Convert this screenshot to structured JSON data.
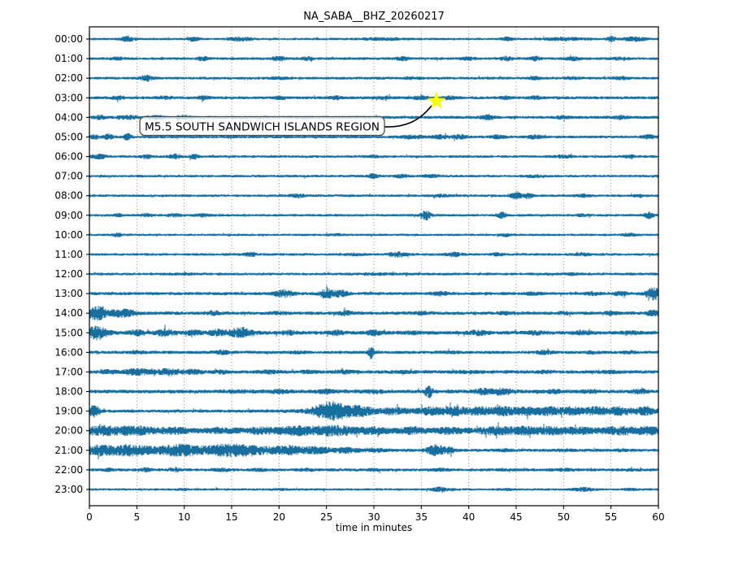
{
  "title": "NA_SABA__BHZ_20260217",
  "xlabel": "time in minutes",
  "annotation": {
    "text": "M5.5 SOUTH SANDWICH ISLANDS REGION"
  },
  "colors": {
    "trace": "#186e9e",
    "grid": "#7f7f7f",
    "spine": "#000000",
    "star_fill": "#ffff00",
    "annotation_border": "#4d4d4d",
    "annotation_fill": "rgba(255,255,255,0.75)",
    "arrow": "#000000"
  },
  "chart_data": {
    "type": "line",
    "subtype": "helicorder_dayplot",
    "title": "NA_SABA__BHZ_20260217",
    "xlabel": "time in minutes",
    "x_range": [
      0,
      60
    ],
    "x_ticks": [
      0,
      5,
      10,
      15,
      20,
      25,
      30,
      35,
      40,
      45,
      50,
      55,
      60
    ],
    "grid": "dotted-vertical",
    "legend": "none",
    "event": {
      "label": "M5.5 SOUTH SANDWICH ISLANDS REGION",
      "row_label": "03:00",
      "minute": 36.6,
      "marker": "star"
    },
    "amplitude_units": "relative half-height (px at 24px row pitch); bursts = [minute, sigma_min, peak_amp]",
    "rows": [
      {
        "label": "00:00",
        "base": 1.4,
        "bursts": [
          [
            4,
            0.5,
            2.5
          ],
          [
            11,
            0.4,
            2
          ],
          [
            16,
            0.8,
            2
          ],
          [
            31,
            1.5,
            1
          ],
          [
            44,
            0.4,
            1.5
          ],
          [
            50,
            1.5,
            1.2
          ],
          [
            55,
            0.3,
            3
          ],
          [
            57.5,
            0.8,
            2
          ]
        ]
      },
      {
        "label": "01:00",
        "base": 1.6,
        "bursts": [
          [
            3,
            0.5,
            1
          ],
          [
            12,
            0.4,
            1.8
          ],
          [
            20,
            0.5,
            2
          ],
          [
            23,
            0.4,
            1.5
          ],
          [
            33,
            0.5,
            1.5
          ],
          [
            40,
            0.5,
            1.2
          ],
          [
            44,
            0.4,
            1.8
          ],
          [
            47,
            0.4,
            1.8
          ],
          [
            51,
            0.5,
            1.5
          ],
          [
            56,
            0.5,
            1.2
          ]
        ]
      },
      {
        "label": "02:00",
        "base": 1.6,
        "bursts": [
          [
            6,
            0.4,
            2.8
          ],
          [
            20,
            0.6,
            0.8
          ],
          [
            34,
            0.6,
            0.8
          ],
          [
            47,
            0.5,
            1.2
          ],
          [
            51,
            0.5,
            1
          ],
          [
            56,
            0.5,
            1.3
          ]
        ]
      },
      {
        "label": "03:00",
        "base": 1.7,
        "bursts": [
          [
            3,
            0.5,
            1.5
          ],
          [
            8,
            0.5,
            1.2
          ],
          [
            12,
            0.5,
            1.5
          ],
          [
            20,
            0.5,
            1.2
          ],
          [
            26,
            0.5,
            1.2
          ],
          [
            31,
            0.6,
            1.2
          ],
          [
            35,
            0.6,
            1.3
          ],
          [
            38,
            0.5,
            1.3
          ],
          [
            44,
            0.5,
            1.2
          ],
          [
            47,
            0.5,
            1.2
          ]
        ]
      },
      {
        "label": "04:00",
        "base": 1.7,
        "bursts": [
          [
            1,
            0.5,
            1.5
          ],
          [
            4,
            0.6,
            1.6
          ],
          [
            7,
            0.6,
            1.5
          ],
          [
            10,
            0.5,
            1.3
          ],
          [
            42,
            0.5,
            2
          ],
          [
            50,
            0.5,
            1
          ],
          [
            56,
            0.5,
            1.5
          ]
        ]
      },
      {
        "label": "05:00",
        "base": 1.6,
        "bursts": [
          [
            0.5,
            0.3,
            2
          ],
          [
            2,
            0.3,
            2.5
          ],
          [
            4,
            0.25,
            3.5
          ],
          [
            34,
            0.8,
            1.5
          ],
          [
            37,
            0.6,
            1.6
          ],
          [
            39,
            0.5,
            2
          ],
          [
            43,
            0.5,
            1.5
          ],
          [
            47,
            0.6,
            1.6
          ],
          [
            59,
            0.5,
            1.8
          ]
        ]
      },
      {
        "label": "06:00",
        "base": 1.5,
        "bursts": [
          [
            1,
            0.5,
            2.2
          ],
          [
            6,
            0.4,
            1.6
          ],
          [
            9,
            0.4,
            2.4
          ],
          [
            11,
            0.3,
            2
          ],
          [
            30,
            0.6,
            1
          ],
          [
            50,
            0.6,
            1.2
          ],
          [
            57,
            0.5,
            1.3
          ]
        ]
      },
      {
        "label": "07:00",
        "base": 1.5,
        "bursts": [
          [
            30,
            0.5,
            1.8
          ],
          [
            33,
            0.5,
            1.4
          ],
          [
            36,
            0.5,
            1.3
          ],
          [
            47,
            0.5,
            1
          ]
        ]
      },
      {
        "label": "08:00",
        "base": 1.5,
        "bursts": [
          [
            22,
            0.5,
            1.8
          ],
          [
            37,
            0.8,
            1
          ],
          [
            45,
            0.35,
            4
          ],
          [
            46.3,
            0.3,
            3
          ],
          [
            52,
            0.5,
            1.3
          ],
          [
            58,
            0.4,
            1.2
          ]
        ]
      },
      {
        "label": "09:00",
        "base": 1.5,
        "bursts": [
          [
            3,
            0.3,
            1.5
          ],
          [
            6,
            0.4,
            1.4
          ],
          [
            9,
            0.5,
            1.2
          ],
          [
            12,
            0.5,
            1.3
          ],
          [
            35.5,
            0.35,
            4.5
          ],
          [
            43.5,
            0.3,
            3
          ],
          [
            52,
            0.5,
            1
          ],
          [
            59,
            0.35,
            3
          ]
        ]
      },
      {
        "label": "10:00",
        "base": 1.4,
        "bursts": [
          [
            3,
            0.3,
            1.6
          ],
          [
            26,
            0.6,
            0.8
          ],
          [
            44,
            0.5,
            1
          ],
          [
            57,
            0.5,
            1.4
          ]
        ]
      },
      {
        "label": "11:00",
        "base": 1.5,
        "bursts": [
          [
            17,
            0.5,
            1.6
          ],
          [
            28,
            0.6,
            1
          ],
          [
            32.5,
            0.7,
            2.2
          ],
          [
            38.5,
            0.6,
            1.8
          ],
          [
            43,
            0.5,
            1.3
          ],
          [
            52,
            0.6,
            1.2
          ]
        ]
      },
      {
        "label": "12:00",
        "base": 1.6,
        "bursts": [
          [
            10,
            1,
            0.5
          ],
          [
            30,
            1.5,
            0.6
          ],
          [
            51,
            0.6,
            0.8
          ]
        ]
      },
      {
        "label": "13:00",
        "base": 1.8,
        "bursts": [
          [
            20.5,
            0.7,
            3.5
          ],
          [
            25,
            0.5,
            4.5
          ],
          [
            26.5,
            0.5,
            3
          ],
          [
            37,
            0.6,
            1.5
          ],
          [
            47,
            0.6,
            1
          ],
          [
            53,
            0.5,
            1.2
          ],
          [
            56,
            0.5,
            1.5
          ],
          [
            59.5,
            0.6,
            6
          ]
        ]
      },
      {
        "label": "14:00",
        "base": 1.9,
        "bursts": [
          [
            0.8,
            0.7,
            7
          ],
          [
            3.5,
            1,
            3.5
          ],
          [
            13,
            0.6,
            1.5
          ],
          [
            20,
            0.6,
            1
          ],
          [
            27,
            0.5,
            2
          ],
          [
            35,
            0.8,
            1
          ],
          [
            44,
            0.6,
            1
          ],
          [
            50,
            0.5,
            1
          ],
          [
            55,
            0.5,
            1.5
          ],
          [
            59.5,
            0.5,
            2.5
          ]
        ]
      },
      {
        "label": "15:00",
        "base": 2.1,
        "bursts": [
          [
            0.8,
            0.8,
            6.5
          ],
          [
            5,
            0.6,
            2.5
          ],
          [
            8,
            0.7,
            3
          ],
          [
            11,
            0.6,
            2
          ],
          [
            13.5,
            0.6,
            2.5
          ],
          [
            16,
            0.9,
            4.5
          ],
          [
            21,
            0.6,
            1.5
          ],
          [
            26,
            0.6,
            1.6
          ],
          [
            30,
            0.6,
            1.8
          ],
          [
            34,
            0.6,
            1.2
          ],
          [
            41,
            0.7,
            1.8
          ],
          [
            47,
            0.6,
            1.2
          ],
          [
            52,
            0.6,
            1.5
          ],
          [
            57,
            0.6,
            1.2
          ]
        ]
      },
      {
        "label": "16:00",
        "base": 1.8,
        "bursts": [
          [
            5,
            0.6,
            0.8
          ],
          [
            14,
            0.6,
            1.4
          ],
          [
            22,
            0.6,
            0.8
          ],
          [
            29.7,
            0.2,
            7
          ],
          [
            38,
            0.8,
            0.8
          ],
          [
            48,
            0.6,
            1.6
          ],
          [
            53,
            0.5,
            1
          ],
          [
            57,
            0.5,
            1.2
          ]
        ]
      },
      {
        "label": "17:00",
        "base": 2.0,
        "bursts": [
          [
            2,
            0.5,
            1.4
          ],
          [
            5,
            1,
            2.6
          ],
          [
            8.5,
            0.9,
            3
          ],
          [
            11,
            0.6,
            1.8
          ],
          [
            14,
            0.5,
            1.2
          ],
          [
            19,
            0.7,
            1.2
          ],
          [
            23,
            0.6,
            1
          ],
          [
            27,
            0.6,
            1.2
          ],
          [
            33,
            0.8,
            0.8
          ],
          [
            40,
            0.8,
            0.8
          ],
          [
            48,
            0.6,
            0.8
          ],
          [
            55,
            0.6,
            0.8
          ]
        ]
      },
      {
        "label": "18:00",
        "base": 2.1,
        "bursts": [
          [
            16,
            1,
            0.8
          ],
          [
            20,
            0.8,
            1
          ],
          [
            25,
            0.8,
            1.2
          ],
          [
            30,
            0.8,
            1
          ],
          [
            35.8,
            0.25,
            6
          ],
          [
            41.5,
            0.6,
            2.5
          ],
          [
            43.5,
            0.7,
            3
          ],
          [
            49,
            0.6,
            1.3
          ],
          [
            53,
            0.6,
            1
          ],
          [
            58,
            0.5,
            1.8
          ]
        ]
      },
      {
        "label": "19:00",
        "base": 1.8,
        "bursts": [
          [
            0.5,
            0.4,
            6
          ],
          [
            25.5,
            1.3,
            9
          ],
          [
            28.5,
            1,
            4
          ],
          [
            32,
            0.8,
            2
          ],
          [
            45,
            12,
            2.2
          ],
          [
            36,
            0.8,
            2
          ],
          [
            38.5,
            0.7,
            2.5
          ],
          [
            41,
            0.7,
            2
          ],
          [
            43.5,
            0.7,
            2.6
          ],
          [
            46,
            0.7,
            2
          ],
          [
            48.5,
            0.7,
            1.8
          ],
          [
            51,
            0.7,
            2
          ],
          [
            53.5,
            0.7,
            2.3
          ],
          [
            56,
            0.7,
            2.5
          ],
          [
            58.5,
            0.7,
            2.5
          ]
        ]
      },
      {
        "label": "20:00",
        "base": 3.2,
        "bursts": [
          [
            1.5,
            1.5,
            3
          ],
          [
            5,
            1.5,
            2.5
          ],
          [
            9,
            1,
            1.5
          ],
          [
            14,
            1,
            1
          ],
          [
            18,
            1,
            1.5
          ],
          [
            22,
            1.5,
            3
          ],
          [
            26,
            1.5,
            3.5
          ],
          [
            30,
            1,
            2
          ],
          [
            34,
            0.8,
            2
          ],
          [
            38,
            1,
            1.5
          ],
          [
            43,
            1.2,
            2.5
          ],
          [
            46,
            1,
            2.5
          ],
          [
            49,
            1,
            2.2
          ],
          [
            52,
            1,
            1.8
          ],
          [
            56,
            1.2,
            2.5
          ],
          [
            59,
            0.8,
            2.5
          ]
        ]
      },
      {
        "label": "21:00",
        "base": 1.8,
        "bursts": [
          [
            11,
            9,
            3.5
          ],
          [
            1,
            1,
            3
          ],
          [
            4,
            1.2,
            2.5
          ],
          [
            9.5,
            1,
            2.5
          ],
          [
            14.5,
            1,
            3
          ],
          [
            17,
            1,
            2.5
          ],
          [
            21,
            1,
            2.5
          ],
          [
            24,
            0.8,
            2
          ],
          [
            27,
            0.8,
            1.5
          ],
          [
            30,
            0.8,
            1
          ],
          [
            36.5,
            0.6,
            5.5
          ],
          [
            38,
            0.4,
            3
          ],
          [
            44,
            0.6,
            0.8
          ],
          [
            50,
            0.8,
            0.6
          ],
          [
            56,
            0.6,
            0.6
          ]
        ]
      },
      {
        "label": "22:00",
        "base": 1.7,
        "bursts": [
          [
            2,
            0.5,
            1
          ],
          [
            6,
            0.5,
            1.4
          ],
          [
            9,
            0.5,
            1.4
          ],
          [
            14,
            0.6,
            1.2
          ],
          [
            18,
            0.6,
            1
          ],
          [
            23,
            0.6,
            0.8
          ],
          [
            30,
            0.8,
            0.6
          ],
          [
            37,
            0.6,
            0.8
          ],
          [
            44,
            0.6,
            0.6
          ],
          [
            50,
            0.8,
            0.8
          ],
          [
            57,
            0.6,
            0.6
          ]
        ]
      },
      {
        "label": "23:00",
        "base": 1.4,
        "bursts": [
          [
            10,
            0.8,
            0.4
          ],
          [
            20,
            0.8,
            0.4
          ],
          [
            37,
            0.6,
            2
          ],
          [
            44,
            0.6,
            0.6
          ],
          [
            52,
            0.7,
            1.6
          ],
          [
            57,
            0.5,
            0.8
          ]
        ]
      }
    ]
  }
}
